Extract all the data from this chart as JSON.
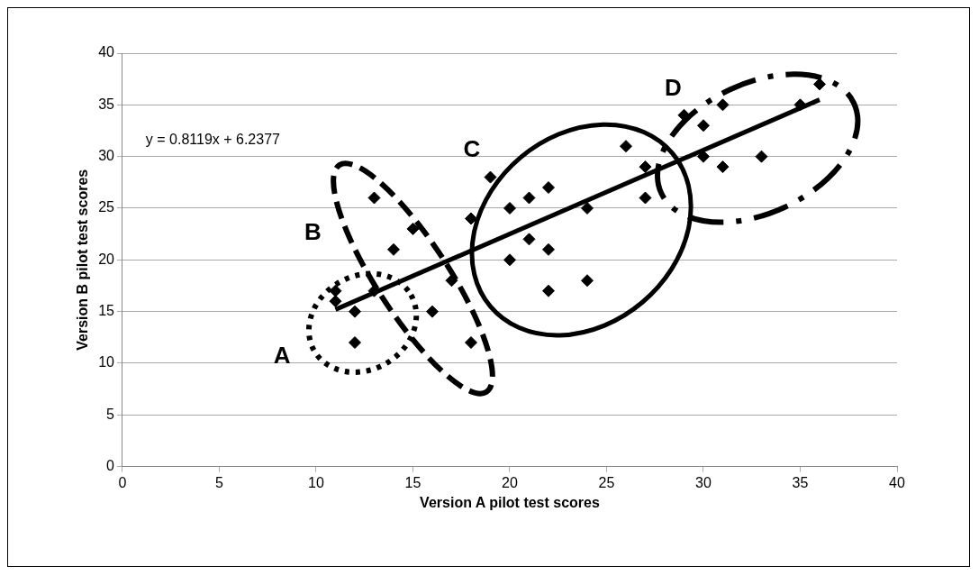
{
  "chart_data": {
    "type": "scatter",
    "xlabel": "Version A pilot test scores",
    "ylabel": "Version B pilot test scores",
    "xlim": [
      0,
      40
    ],
    "xticks": [
      0,
      5,
      10,
      15,
      20,
      25,
      30,
      35,
      40
    ],
    "ylim": [
      0,
      40
    ],
    "yticks": [
      0,
      5,
      10,
      15,
      20,
      25,
      30,
      35,
      40
    ],
    "grid": "y",
    "legend": false,
    "marker": "diamond",
    "series": [
      {
        "type": "scatter",
        "color": "#000000",
        "x": [
          11,
          11,
          12,
          12,
          13,
          13,
          14,
          15,
          16,
          17,
          18,
          18,
          19,
          20,
          20,
          21,
          21,
          22,
          22,
          22,
          24,
          24,
          26,
          27,
          27,
          29,
          30,
          30,
          31,
          31,
          33,
          35,
          36
        ],
        "values": [
          17,
          16,
          15,
          12,
          26,
          17,
          21,
          23,
          15,
          18,
          12,
          24,
          28,
          25,
          20,
          26,
          22,
          27,
          21,
          17,
          25,
          18,
          31,
          29,
          26,
          34,
          33,
          30,
          35,
          29,
          30,
          35,
          37
        ]
      },
      {
        "type": "line",
        "color": "#000000",
        "marker": "none",
        "line_style": "solid",
        "x": [
          11,
          36
        ],
        "values": [
          15.2,
          35.5
        ]
      }
    ],
    "annotations": [
      "y = 0.8119x + 6.2377",
      "A",
      "B",
      "C",
      "D"
    ]
  }
}
